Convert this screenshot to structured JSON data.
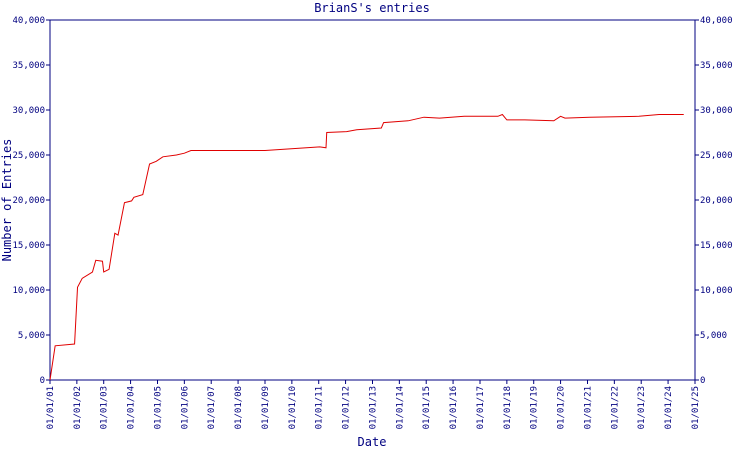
{
  "chart_data": {
    "type": "line",
    "title": "BrianS's entries",
    "x_label": "Date",
    "y_label": "Number of Entries",
    "x": [
      "01/01/01",
      "03/12/01",
      "12/01/01",
      "01/10/02",
      "03/15/02",
      "08/01/02",
      "09/15/02",
      "12/15/02",
      "01/01/03",
      "03/15/03",
      "06/01/03",
      "07/15/03",
      "10/10/03",
      "01/15/04",
      "02/15/04",
      "06/15/04",
      "09/15/04",
      "12/15/04",
      "03/15/05",
      "09/15/05",
      "01/01/06",
      "04/01/06",
      "01/01/09",
      "01/15/11",
      "04/10/11",
      "04/20/11",
      "01/15/12",
      "06/01/12",
      "05/01/13",
      "06/01/13",
      "05/01/14",
      "12/01/14",
      "07/01/15",
      "06/01/16",
      "09/01/17",
      "11/01/17",
      "01/01/18",
      "09/01/18",
      "10/01/19",
      "01/01/20",
      "03/01/20",
      "02/01/21",
      "12/01/22",
      "09/01/23",
      "08/01/24"
    ],
    "series": [
      {
        "name": "BrianS",
        "color": "#e00000",
        "values": [
          0,
          3800,
          4000,
          10300,
          11300,
          12000,
          13300,
          13200,
          12000,
          12300,
          16300,
          16100,
          19700,
          19900,
          20300,
          20600,
          24000,
          24300,
          24800,
          25000,
          25200,
          25500,
          25500,
          25900,
          25800,
          27500,
          27600,
          27800,
          28000,
          28600,
          28800,
          29200,
          29100,
          29300,
          29300,
          29500,
          28900,
          28900,
          28800,
          29300,
          29100,
          29200,
          29300,
          29500,
          29500
        ]
      }
    ],
    "xlim": [
      "01/01/01",
      "01/01/25"
    ],
    "xticks": [
      "01/01/01",
      "01/01/02",
      "01/01/03",
      "01/01/04",
      "01/01/05",
      "01/01/06",
      "01/01/07",
      "01/01/08",
      "01/01/09",
      "01/01/10",
      "01/01/11",
      "01/01/12",
      "01/01/13",
      "01/01/14",
      "01/01/15",
      "01/01/16",
      "01/01/17",
      "01/01/18",
      "01/01/19",
      "01/01/20",
      "01/01/21",
      "01/01/22",
      "01/01/23",
      "01/01/24",
      "01/01/25"
    ],
    "ylim": [
      0,
      40000
    ],
    "yticks": [
      0,
      {
        "value": 5000,
        "label": "5,000"
      },
      {
        "value": 10000,
        "label": "10,000"
      },
      {
        "value": 15000,
        "label": "15,000"
      },
      {
        "value": 20000,
        "label": "20,000"
      },
      {
        "value": 25000,
        "label": "25,000"
      },
      {
        "value": 30000,
        "label": "30,000"
      },
      {
        "value": 35000,
        "label": "35,000"
      },
      {
        "value": 40000,
        "label": "40,000"
      }
    ]
  }
}
